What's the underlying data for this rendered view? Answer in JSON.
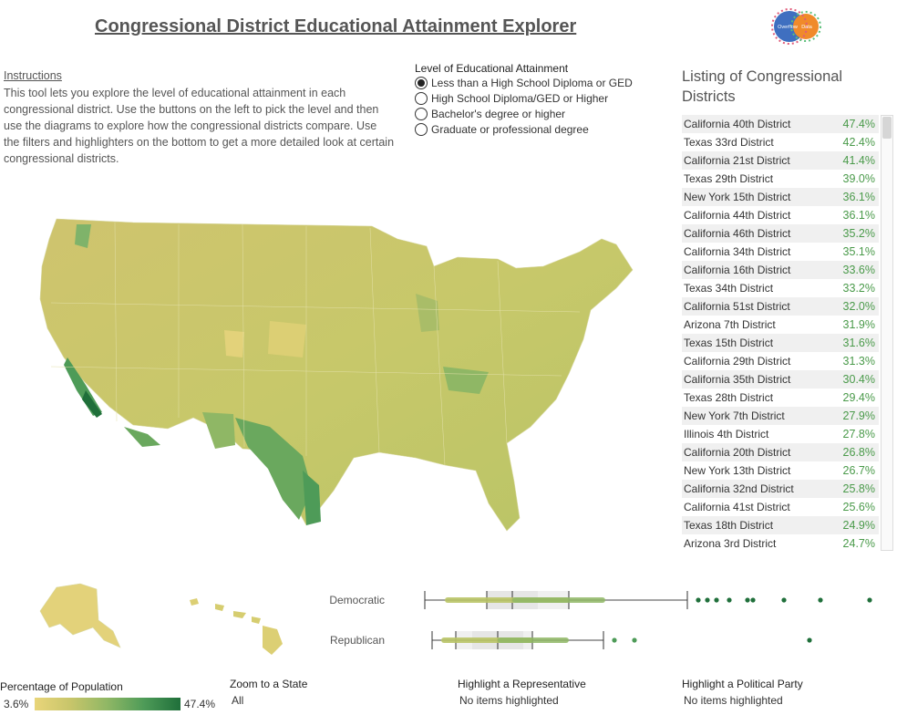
{
  "title": "Congressional District Educational Attainment Explorer",
  "logo": {
    "left_text": "Overflow",
    "right_text": "Data"
  },
  "instructions": {
    "heading": "Instructions",
    "body": "This tool lets you explore the level of educational attainment in each congressional district. Use the buttons on the left to pick the level and then use the diagrams to explore how the congressional districts compare. Use the filters and highlighters on the bottom to get a more detailed look at certain congressional districts."
  },
  "level": {
    "heading": "Level of Educational Attainment",
    "options": [
      "Less than a High School Diploma or GED",
      "High School Diploma/GED or Higher",
      "Bachelor's degree or higher",
      "Graduate or professional degree"
    ],
    "selected_index": 0
  },
  "listing": {
    "heading": "Listing of Congressional Districts",
    "rows": [
      {
        "name": "California 40th District",
        "pct": "47.4%"
      },
      {
        "name": "Texas 33rd District",
        "pct": "42.4%"
      },
      {
        "name": "California 21st District",
        "pct": "41.4%"
      },
      {
        "name": "Texas 29th District",
        "pct": "39.0%"
      },
      {
        "name": "New York 15th District",
        "pct": "36.1%"
      },
      {
        "name": "California 44th District",
        "pct": "36.1%"
      },
      {
        "name": "California 46th District",
        "pct": "35.2%"
      },
      {
        "name": "California 34th District",
        "pct": "35.1%"
      },
      {
        "name": "California 16th District",
        "pct": "33.6%"
      },
      {
        "name": "Texas 34th District",
        "pct": "33.2%"
      },
      {
        "name": "California 51st District",
        "pct": "32.0%"
      },
      {
        "name": "Arizona 7th District",
        "pct": "31.9%"
      },
      {
        "name": "Texas 15th District",
        "pct": "31.6%"
      },
      {
        "name": "California 29th District",
        "pct": "31.3%"
      },
      {
        "name": "California 35th District",
        "pct": "30.4%"
      },
      {
        "name": "Texas 28th District",
        "pct": "29.4%"
      },
      {
        "name": "New York 7th District",
        "pct": "27.9%"
      },
      {
        "name": "Illinois 4th District",
        "pct": "27.8%"
      },
      {
        "name": "California 20th District",
        "pct": "26.8%"
      },
      {
        "name": "New York 13th District",
        "pct": "26.7%"
      },
      {
        "name": "California 32nd District",
        "pct": "25.8%"
      },
      {
        "name": "California 41st District",
        "pct": "25.6%"
      },
      {
        "name": "Texas 18th District",
        "pct": "24.9%"
      },
      {
        "name": "Arizona 3rd District",
        "pct": "24.7%"
      }
    ]
  },
  "boxplot": {
    "parties": [
      "Democratic",
      "Republican"
    ],
    "axis_range_pct": [
      3.6,
      47.4
    ]
  },
  "legend": {
    "heading": "Percentage of Population",
    "min": "3.6%",
    "max": "47.4%",
    "color_low": "#e9d57a",
    "color_high": "#1f6f3a"
  },
  "filters": {
    "zoom_heading": "Zoom to a State",
    "zoom_value": "All",
    "rep_heading": "Highlight a Representative",
    "rep_value": "No items highlighted",
    "party_heading": "Highlight a Political Party",
    "party_value": "No items highlighted"
  }
}
